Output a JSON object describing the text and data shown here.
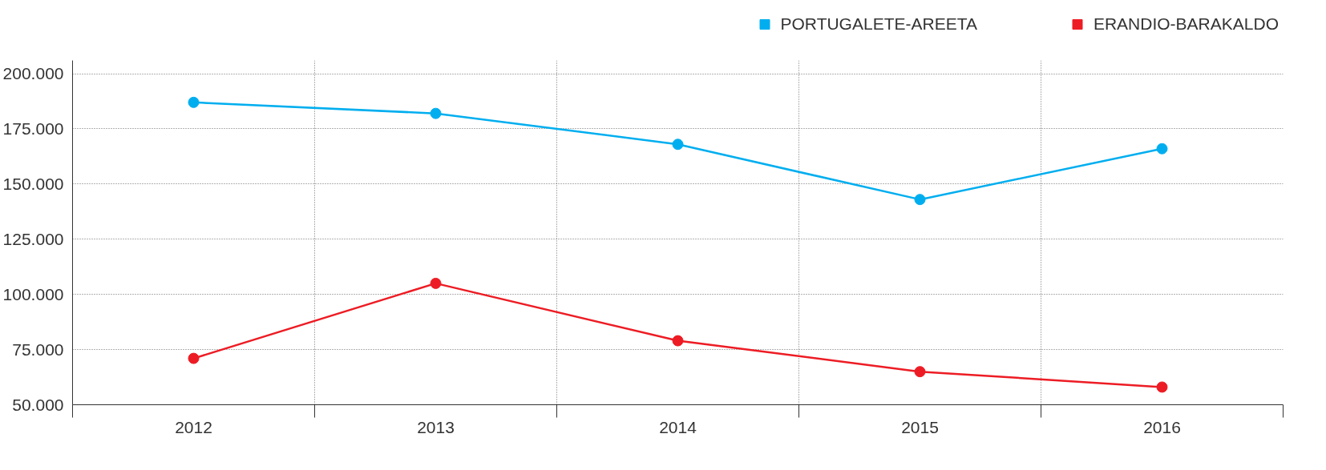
{
  "chart_data": {
    "type": "line",
    "categories": [
      "2012",
      "2013",
      "2014",
      "2015",
      "2016"
    ],
    "series": [
      {
        "name": "PORTUGALETE-AREETA",
        "color": "#00aeef",
        "values": [
          187000,
          182000,
          168000,
          143000,
          166000
        ]
      },
      {
        "name": "ERANDIO-BARAKALDO",
        "color": "#ed1c24",
        "values": [
          71000,
          105000,
          79000,
          65000,
          58000
        ]
      }
    ],
    "ylim": [
      50000,
      206000
    ],
    "yticks": [
      {
        "value": 50000,
        "label": "50.000"
      },
      {
        "value": 75000,
        "label": "75.000"
      },
      {
        "value": 100000,
        "label": "100.000"
      },
      {
        "value": 125000,
        "label": "125.000"
      },
      {
        "value": 150000,
        "label": "150.000"
      },
      {
        "value": 175000,
        "label": "175.000"
      },
      {
        "value": 200000,
        "label": "200.000"
      }
    ],
    "grid": true,
    "legend": "top right",
    "marker": "circle",
    "line_style": "solid"
  }
}
